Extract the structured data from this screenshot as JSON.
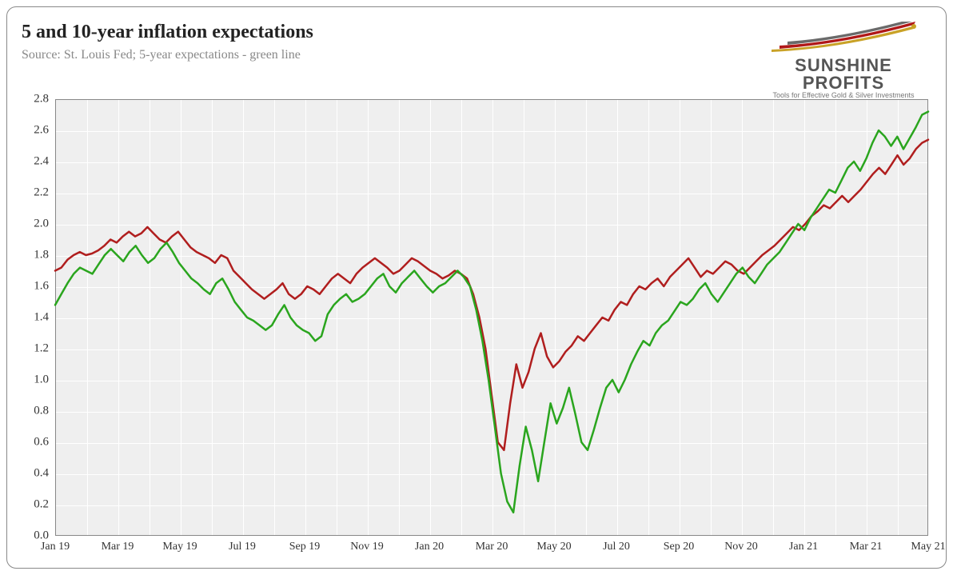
{
  "title": "5 and 10-year inflation expectations",
  "source": "Source: St. Louis Fed; 5-year expectations - green line",
  "logo": {
    "main": "SUNSHINE PROFITS",
    "sub": "Tools for Effective Gold & Silver Investments",
    "swoosh_colors": [
      "#c9a227",
      "#b01818",
      "#6a6a6a"
    ]
  },
  "chart": {
    "type": "line",
    "background_color": "#efefef",
    "grid_color": "#ffffff",
    "border_color": "#888888",
    "ylim": [
      0.0,
      2.8
    ],
    "ytick_step": 0.2,
    "yticks": [
      "0.0",
      "0.2",
      "0.4",
      "0.6",
      "0.8",
      "1.0",
      "1.2",
      "1.4",
      "1.6",
      "1.8",
      "2.0",
      "2.2",
      "2.4",
      "2.6",
      "2.8"
    ],
    "xticks": [
      "Jan 19",
      "Mar 19",
      "May 19",
      "Jul 19",
      "Sep 19",
      "Nov 19",
      "Jan 20",
      "Mar 20",
      "May 20",
      "Jul 20",
      "Sep 20",
      "Nov 20",
      "Jan 21",
      "Mar 21",
      "May 21"
    ],
    "x_minor_per_major": 2,
    "label_fontsize": 15,
    "line_width": 2.5,
    "series": [
      {
        "name": "10-year",
        "color": "#b01e1e",
        "data": [
          1.7,
          1.72,
          1.77,
          1.8,
          1.82,
          1.8,
          1.81,
          1.83,
          1.86,
          1.9,
          1.88,
          1.92,
          1.95,
          1.92,
          1.94,
          1.98,
          1.94,
          1.9,
          1.88,
          1.92,
          1.95,
          1.9,
          1.85,
          1.82,
          1.8,
          1.78,
          1.75,
          1.8,
          1.78,
          1.7,
          1.66,
          1.62,
          1.58,
          1.55,
          1.52,
          1.55,
          1.58,
          1.62,
          1.55,
          1.52,
          1.55,
          1.6,
          1.58,
          1.55,
          1.6,
          1.65,
          1.68,
          1.65,
          1.62,
          1.68,
          1.72,
          1.75,
          1.78,
          1.75,
          1.72,
          1.68,
          1.7,
          1.74,
          1.78,
          1.76,
          1.73,
          1.7,
          1.68,
          1.65,
          1.67,
          1.7,
          1.68,
          1.65,
          1.55,
          1.4,
          1.2,
          0.9,
          0.6,
          0.55,
          0.85,
          1.1,
          0.95,
          1.05,
          1.2,
          1.3,
          1.15,
          1.08,
          1.12,
          1.18,
          1.22,
          1.28,
          1.25,
          1.3,
          1.35,
          1.4,
          1.38,
          1.45,
          1.5,
          1.48,
          1.55,
          1.6,
          1.58,
          1.62,
          1.65,
          1.6,
          1.66,
          1.7,
          1.74,
          1.78,
          1.72,
          1.66,
          1.7,
          1.68,
          1.72,
          1.76,
          1.74,
          1.7,
          1.68,
          1.72,
          1.76,
          1.8,
          1.83,
          1.86,
          1.9,
          1.94,
          1.98,
          1.96,
          2.0,
          2.05,
          2.08,
          2.12,
          2.1,
          2.14,
          2.18,
          2.14,
          2.18,
          2.22,
          2.27,
          2.32,
          2.36,
          2.32,
          2.38,
          2.44,
          2.38,
          2.42,
          2.48,
          2.52,
          2.54
        ]
      },
      {
        "name": "5-year",
        "color": "#2aa51e",
        "data": [
          1.48,
          1.55,
          1.62,
          1.68,
          1.72,
          1.7,
          1.68,
          1.74,
          1.8,
          1.84,
          1.8,
          1.76,
          1.82,
          1.86,
          1.8,
          1.75,
          1.78,
          1.84,
          1.88,
          1.82,
          1.75,
          1.7,
          1.65,
          1.62,
          1.58,
          1.55,
          1.62,
          1.65,
          1.58,
          1.5,
          1.45,
          1.4,
          1.38,
          1.35,
          1.32,
          1.35,
          1.42,
          1.48,
          1.4,
          1.35,
          1.32,
          1.3,
          1.25,
          1.28,
          1.42,
          1.48,
          1.52,
          1.55,
          1.5,
          1.52,
          1.55,
          1.6,
          1.65,
          1.68,
          1.6,
          1.56,
          1.62,
          1.66,
          1.7,
          1.65,
          1.6,
          1.56,
          1.6,
          1.62,
          1.66,
          1.7,
          1.66,
          1.6,
          1.45,
          1.25,
          1.0,
          0.7,
          0.4,
          0.22,
          0.15,
          0.45,
          0.7,
          0.55,
          0.35,
          0.6,
          0.85,
          0.72,
          0.82,
          0.95,
          0.78,
          0.6,
          0.55,
          0.68,
          0.82,
          0.95,
          1.0,
          0.92,
          1.0,
          1.1,
          1.18,
          1.25,
          1.22,
          1.3,
          1.35,
          1.38,
          1.44,
          1.5,
          1.48,
          1.52,
          1.58,
          1.62,
          1.55,
          1.5,
          1.56,
          1.62,
          1.68,
          1.72,
          1.66,
          1.62,
          1.68,
          1.74,
          1.78,
          1.82,
          1.88,
          1.94,
          2.0,
          1.96,
          2.04,
          2.1,
          2.16,
          2.22,
          2.2,
          2.28,
          2.36,
          2.4,
          2.34,
          2.42,
          2.52,
          2.6,
          2.56,
          2.5,
          2.56,
          2.48,
          2.55,
          2.62,
          2.7,
          2.72
        ]
      }
    ]
  }
}
